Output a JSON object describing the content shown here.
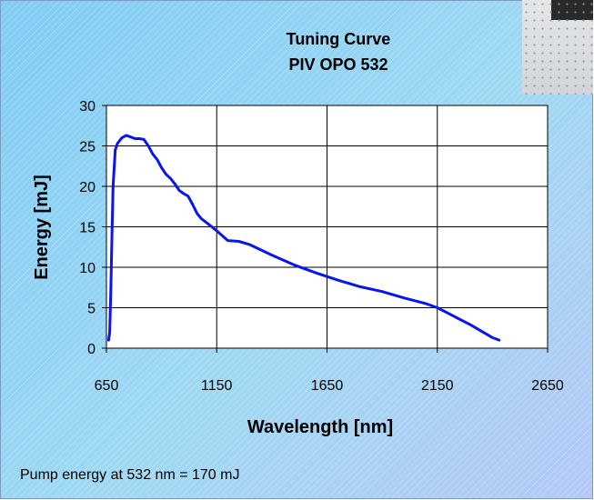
{
  "footnote": "Pump energy at 532 nm = 170 mJ",
  "chart_data": {
    "type": "line",
    "title": [
      "Tuning Curve",
      "PIV OPO 532"
    ],
    "xlabel": "Wavelength [nm]",
    "ylabel": "Energy [mJ]",
    "xlim": [
      650,
      2650
    ],
    "ylim": [
      0,
      30
    ],
    "xticks": [
      650,
      1150,
      1650,
      2150,
      2650
    ],
    "yticks": [
      0,
      5,
      10,
      15,
      20,
      25,
      30
    ],
    "grid": true,
    "colors": {
      "line": "#0a14f0",
      "plot_bg": "#ffffff",
      "grid": "#000000"
    },
    "series": [
      {
        "x": [
          660,
          665,
          670,
          675,
          680,
          690,
          700,
          720,
          740,
          760,
          780,
          800,
          820,
          840,
          860,
          880,
          900,
          920,
          940,
          960,
          980,
          1000,
          1020,
          1040,
          1060,
          1080,
          1100,
          1150,
          1200,
          1250,
          1300,
          1400,
          1500,
          1600,
          1700,
          1800,
          1900,
          2000,
          2100,
          2150,
          2200,
          2250,
          2300,
          2350,
          2400,
          2430
        ],
        "y": [
          1.0,
          2.0,
          7.0,
          14.0,
          20.0,
          24.5,
          25.3,
          26.0,
          26.3,
          26.1,
          25.9,
          25.9,
          25.8,
          25.0,
          24.0,
          23.3,
          22.3,
          21.5,
          21.0,
          20.3,
          19.5,
          19.1,
          18.8,
          17.8,
          16.7,
          16.0,
          15.6,
          14.5,
          13.3,
          13.2,
          12.8,
          11.5,
          10.3,
          9.3,
          8.4,
          7.6,
          7.0,
          6.2,
          5.5,
          5.0,
          4.3,
          3.6,
          2.9,
          2.1,
          1.3,
          1.0
        ]
      }
    ]
  }
}
